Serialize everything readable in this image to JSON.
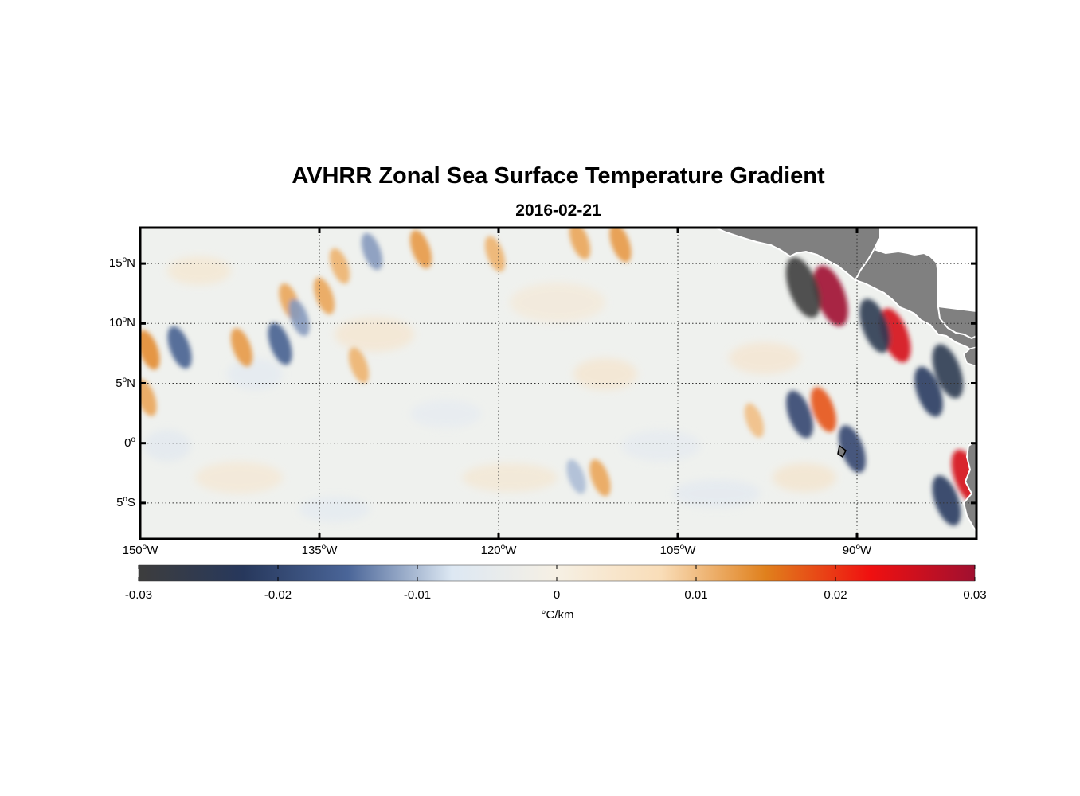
{
  "title": "AVHRR Zonal Sea Surface Temperature Gradient",
  "subtitle": "2016-02-21",
  "chart_data": {
    "type": "heatmap",
    "title": "AVHRR Zonal Sea Surface Temperature Gradient",
    "subtitle": "2016-02-21",
    "x_axis": {
      "range": [
        -150,
        -80
      ],
      "ticks": [
        {
          "value": -150,
          "deg": "150",
          "hemi": "W"
        },
        {
          "value": -135,
          "deg": "135",
          "hemi": "W"
        },
        {
          "value": -120,
          "deg": "120",
          "hemi": "W"
        },
        {
          "value": -105,
          "deg": "105",
          "hemi": "W"
        },
        {
          "value": -90,
          "deg": "90",
          "hemi": "W"
        }
      ]
    },
    "y_axis": {
      "range": [
        -8,
        18
      ],
      "ticks": [
        {
          "value": 15,
          "deg": "15",
          "hemi": "N"
        },
        {
          "value": 10,
          "deg": "10",
          "hemi": "N"
        },
        {
          "value": 5,
          "deg": "5",
          "hemi": "N"
        },
        {
          "value": 0,
          "deg": "0",
          "hemi": ""
        },
        {
          "value": -5,
          "deg": "5",
          "hemi": "S"
        }
      ]
    },
    "grid": true,
    "colorbar": {
      "range": [
        -0.03,
        0.03
      ],
      "ticks": [
        "-0.03",
        "-0.02",
        "-0.01",
        "0",
        "0.01",
        "0.02",
        "0.03"
      ],
      "unit": "°C/km",
      "colors": [
        "#3d3d3d",
        "#27385c",
        "#4a6598",
        "#dde8f3",
        "#f6f0e4",
        "#f9ddb8",
        "#e0801c",
        "#f01010",
        "#a01030"
      ]
    },
    "land_color": "#808080",
    "features": [
      {
        "lon": -92.2,
        "lat": 12.3,
        "value": 0.03
      },
      {
        "lon": -94.5,
        "lat": 13.0,
        "value": -0.03
      },
      {
        "lon": -86.8,
        "lat": 9.0,
        "value": 0.025
      },
      {
        "lon": -88.5,
        "lat": 9.8,
        "value": -0.025
      },
      {
        "lon": -84.0,
        "lat": 4.3,
        "value": -0.022
      },
      {
        "lon": -82.4,
        "lat": 6.0,
        "value": -0.025
      },
      {
        "lon": -92.8,
        "lat": 2.8,
        "value": 0.018
      },
      {
        "lon": -94.8,
        "lat": 2.4,
        "value": -0.02
      },
      {
        "lon": -90.4,
        "lat": -0.5,
        "value": -0.02
      },
      {
        "lon": -82.5,
        "lat": -4.8,
        "value": -0.022
      },
      {
        "lon": -80.8,
        "lat": -2.8,
        "value": 0.025
      },
      {
        "lon": -149.3,
        "lat": 7.8,
        "value": 0.014
      },
      {
        "lon": -149.5,
        "lat": 3.8,
        "value": 0.012
      },
      {
        "lon": -146.7,
        "lat": 8.0,
        "value": -0.016
      },
      {
        "lon": -141.5,
        "lat": 8.0,
        "value": 0.013
      },
      {
        "lon": -138.3,
        "lat": 8.3,
        "value": -0.016
      },
      {
        "lon": -137.5,
        "lat": 11.8,
        "value": 0.012
      },
      {
        "lon": -136.7,
        "lat": 10.5,
        "value": -0.012
      },
      {
        "lon": -134.6,
        "lat": 12.3,
        "value": 0.012
      },
      {
        "lon": -133.3,
        "lat": 14.8,
        "value": 0.011
      },
      {
        "lon": -131.7,
        "lat": 6.5,
        "value": 0.011
      },
      {
        "lon": -130.6,
        "lat": 16.0,
        "value": -0.012
      },
      {
        "lon": -126.5,
        "lat": 16.2,
        "value": 0.013
      },
      {
        "lon": -120.3,
        "lat": 15.8,
        "value": 0.011
      },
      {
        "lon": -109.8,
        "lat": 16.7,
        "value": 0.013
      },
      {
        "lon": -113.2,
        "lat": 16.9,
        "value": 0.012
      },
      {
        "lon": -111.5,
        "lat": -2.9,
        "value": 0.012
      },
      {
        "lon": -113.5,
        "lat": -2.8,
        "value": -0.01
      },
      {
        "lon": -98.6,
        "lat": 1.9,
        "value": 0.01
      }
    ]
  }
}
